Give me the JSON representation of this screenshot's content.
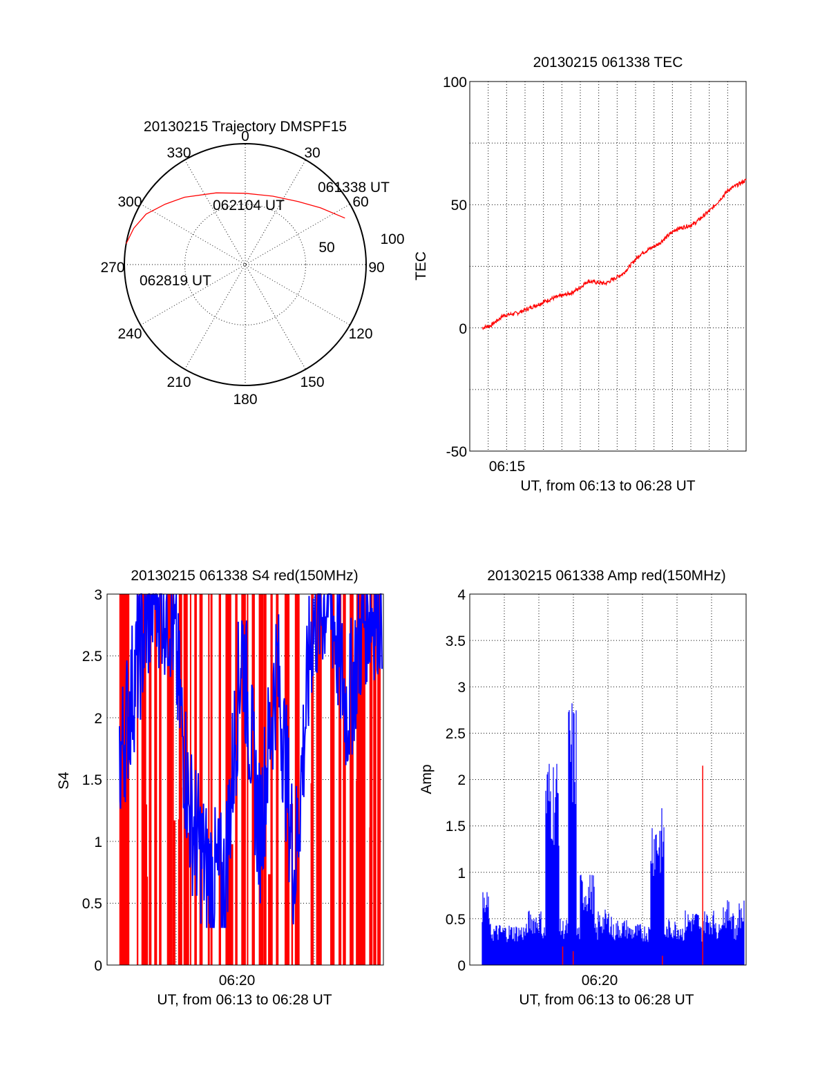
{
  "chart_data": [
    {
      "type": "polar",
      "title": "20130215 Trajectory DMSPF15",
      "azimuth_ticks": [
        "0",
        "30",
        "60",
        "90",
        "120",
        "150",
        "180",
        "210",
        "240",
        "270",
        "300",
        "330"
      ],
      "radial_ticks": [
        "50",
        "100"
      ],
      "grid": true,
      "series": [
        {
          "color": "#ff0000",
          "points": [
            {
              "az": 65,
              "r": 91
            },
            {
              "az": 53,
              "r": 78
            },
            {
              "az": 40,
              "r": 68
            },
            {
              "az": 22,
              "r": 61
            },
            {
              "az": 0,
              "r": 59
            },
            {
              "az": -22,
              "r": 64
            },
            {
              "az": -42,
              "r": 75
            },
            {
              "az": -53,
              "r": 83
            },
            {
              "az": -63,
              "r": 92
            },
            {
              "az": -72,
              "r": 97
            },
            {
              "az": -80,
              "r": 100
            }
          ]
        }
      ],
      "annotations": [
        "061338 UT",
        "062104 UT",
        "062819 UT"
      ]
    },
    {
      "type": "line",
      "title": "20130215 061338 TEC",
      "xlabel": "UT, from 06:13 to 06:28 UT",
      "ylabel": "TEC",
      "x_ticks": [
        "06:15"
      ],
      "y_ticks": [
        "100",
        "50",
        "0",
        "-50"
      ],
      "ylim": [
        -50,
        100
      ],
      "grid": true,
      "series": [
        {
          "color": "#ff0000",
          "x": [
            0,
            0.5,
            1.2,
            2,
            3,
            4,
            5,
            5.5,
            6,
            7,
            8,
            9,
            10,
            11,
            12,
            13,
            14,
            15
          ],
          "y": [
            0,
            1,
            5,
            6,
            9,
            12,
            14,
            16,
            19,
            18,
            22,
            30,
            34,
            40,
            42,
            48,
            56,
            60
          ]
        }
      ]
    },
    {
      "type": "bar",
      "title": "20130215 061338 S4 red(150MHz)",
      "xlabel": "UT, from 06:13 to 06:28 UT",
      "ylabel": "S4",
      "x_ticks": [
        "06:20"
      ],
      "y_ticks": [
        "0",
        "0.5",
        "1",
        "1.5",
        "2",
        "2.5",
        "3"
      ],
      "ylim": [
        0,
        3
      ],
      "grid": true,
      "series": [
        {
          "color": "#ff0000",
          "description": "dense spikes reaching to 3 across whole interval"
        },
        {
          "color": "#0000ff",
          "x": [
            0,
            1,
            2,
            3,
            4,
            5,
            6,
            7,
            8,
            9,
            10,
            11,
            12,
            13,
            14,
            15
          ],
          "y": [
            1.4,
            2.2,
            2.8,
            2.6,
            1.0,
            0.5,
            0.4,
            2.4,
            0.8,
            2.2,
            0.5,
            2.5,
            2.8,
            1.8,
            2.6,
            2.7
          ]
        }
      ]
    },
    {
      "type": "bar",
      "title": "20130215 061338 Amp red(150MHz)",
      "xlabel": "UT, from 06:13 to 06:28 UT",
      "ylabel": "Amp",
      "x_ticks": [
        "06:20"
      ],
      "y_ticks": [
        "0",
        "0.5",
        "1",
        "1.5",
        "2",
        "2.5",
        "3",
        "3.5",
        "4"
      ],
      "ylim": [
        0,
        4
      ],
      "grid": true,
      "series": [
        {
          "color": "#0000ff",
          "x": [
            0,
            3,
            4,
            4.5,
            5,
            6,
            7,
            8,
            10,
            11,
            12,
            13,
            14,
            15
          ],
          "y": [
            0.8,
            0.6,
            2.3,
            0.5,
            2.9,
            1.0,
            0.6,
            0.5,
            1.7,
            0.5,
            0.6,
            0.6,
            0.7,
            0.7
          ]
        },
        {
          "color": "#ff0000",
          "x": [
            4.6,
            5.2,
            10.3,
            12.6
          ],
          "y": [
            0.2,
            0.15,
            0.1,
            2.15
          ]
        }
      ]
    }
  ]
}
